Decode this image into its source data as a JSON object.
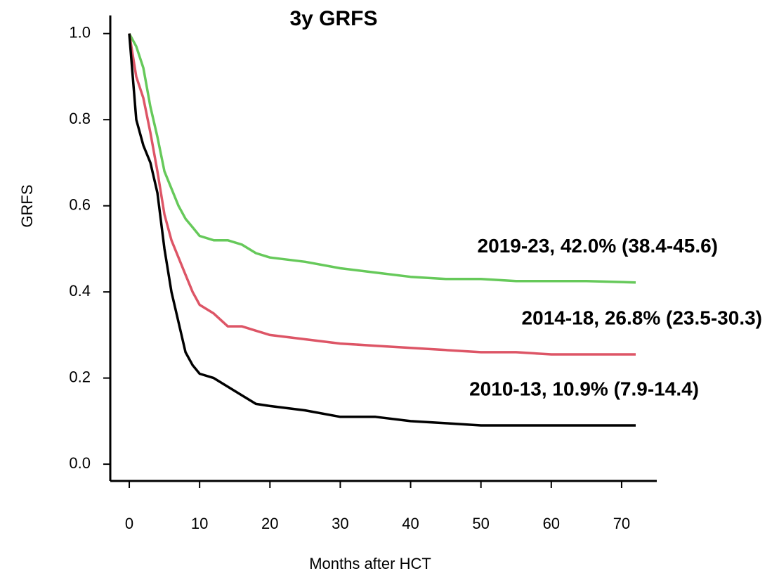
{
  "chart_data": {
    "type": "line",
    "title": "3y GRFS",
    "x_label": "Months after HCT",
    "y_label": "GRFS",
    "x": [
      0,
      1,
      2,
      3,
      4,
      5,
      6,
      7,
      8,
      9,
      10,
      12,
      14,
      16,
      18,
      20,
      25,
      30,
      35,
      40,
      45,
      50,
      55,
      60,
      65,
      72
    ],
    "series": [
      {
        "name": "2019-23, 42.0% (38.4-45.6)",
        "color": "#66c95a",
        "label_color": "#1fae4f",
        "values": [
          1.0,
          0.97,
          0.92,
          0.83,
          0.76,
          0.68,
          0.64,
          0.6,
          0.57,
          0.55,
          0.53,
          0.52,
          0.52,
          0.51,
          0.49,
          0.48,
          0.47,
          0.455,
          0.445,
          0.435,
          0.43,
          0.43,
          0.425,
          0.425,
          0.425,
          0.422
        ]
      },
      {
        "name": "2014-18, 26.8% (23.5-30.3)",
        "color": "#dd5566",
        "label_color": "#ee0000",
        "values": [
          1.0,
          0.9,
          0.85,
          0.77,
          0.68,
          0.58,
          0.52,
          0.48,
          0.44,
          0.4,
          0.37,
          0.35,
          0.32,
          0.32,
          0.31,
          0.3,
          0.29,
          0.28,
          0.275,
          0.27,
          0.265,
          0.26,
          0.26,
          0.255,
          0.255,
          0.255
        ]
      },
      {
        "name": "2010-13, 10.9% (7.9-14.4)",
        "color": "#000000",
        "label_color": "#000000",
        "values": [
          1.0,
          0.8,
          0.74,
          0.7,
          0.63,
          0.5,
          0.4,
          0.33,
          0.26,
          0.23,
          0.21,
          0.2,
          0.18,
          0.16,
          0.14,
          0.135,
          0.125,
          0.11,
          0.11,
          0.1,
          0.095,
          0.09,
          0.09,
          0.09,
          0.09,
          0.09
        ]
      }
    ],
    "xlim": [
      -2.7,
      75
    ],
    "ylim": [
      -0.039,
      1.042
    ],
    "xticks": [
      0,
      10,
      20,
      30,
      40,
      50,
      60,
      70
    ],
    "yticks": [
      {
        "value": 0,
        "label": "0.0"
      },
      0.2,
      0.4,
      0.6,
      0.8,
      {
        "value": 1,
        "label": "1.0"
      }
    ],
    "grid": false
  }
}
